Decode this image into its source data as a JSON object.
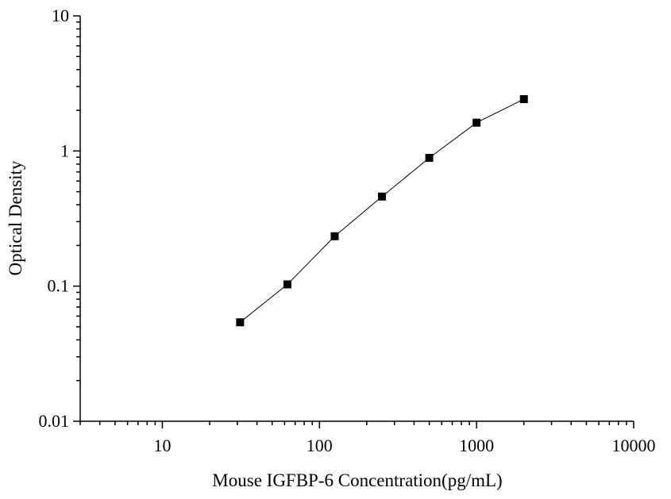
{
  "chart_data": {
    "type": "scatter",
    "title": "",
    "xlabel": "Mouse IGFBP-6 Concentration(pg/mL)",
    "ylabel": "Optical Density",
    "x_scale": "log",
    "y_scale": "log",
    "xlim": [
      3,
      10000
    ],
    "ylim": [
      0.01,
      10
    ],
    "x_ticks": [
      {
        "value": 10,
        "label": "10"
      },
      {
        "value": 100,
        "label": "100"
      },
      {
        "value": 1000,
        "label": "1000"
      },
      {
        "value": 10000,
        "label": "10000"
      }
    ],
    "y_ticks": [
      {
        "value": 0.01,
        "label": "0.01"
      },
      {
        "value": 0.1,
        "label": "0.1"
      },
      {
        "value": 1,
        "label": "1"
      },
      {
        "value": 10,
        "label": "10"
      }
    ],
    "grid": false,
    "series": [
      {
        "marker": "square",
        "line": true,
        "color": "#000000",
        "points": [
          {
            "x": 31.25,
            "y": 0.054
          },
          {
            "x": 62.5,
            "y": 0.103
          },
          {
            "x": 125,
            "y": 0.234
          },
          {
            "x": 250,
            "y": 0.46
          },
          {
            "x": 500,
            "y": 0.89
          },
          {
            "x": 1000,
            "y": 1.62
          },
          {
            "x": 2000,
            "y": 2.42
          }
        ]
      }
    ]
  }
}
